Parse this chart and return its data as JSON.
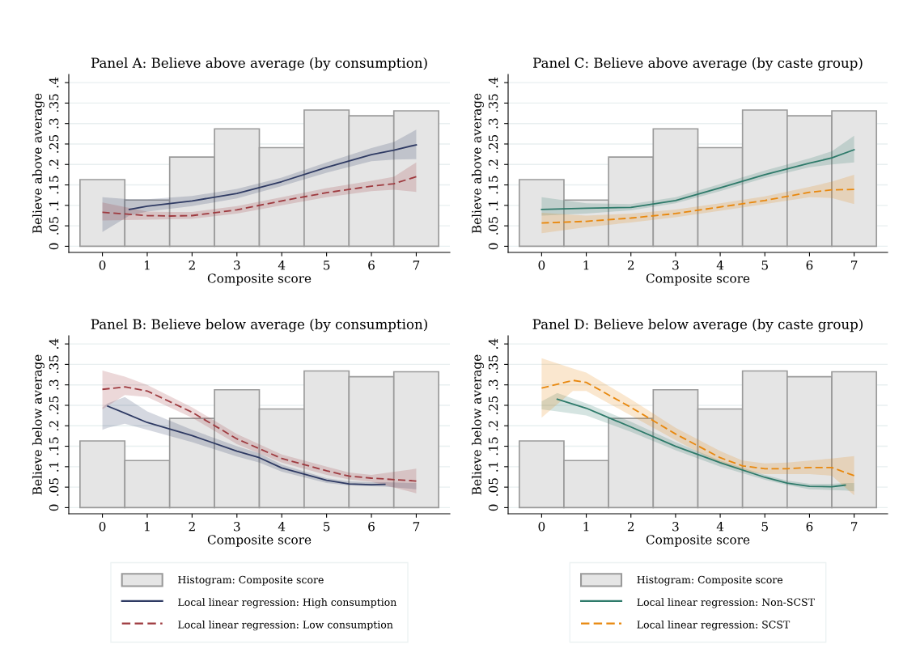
{
  "chart_data": [
    {
      "type": "histogram",
      "title": "Panel A: Believe above average (by consumption)",
      "xlabel": "Composite score",
      "ylabel": "Believe above average",
      "xlim": [
        -0.75,
        7.75
      ],
      "ylim": [
        -0.015,
        0.42
      ],
      "xticks": [
        0,
        1,
        2,
        3,
        4,
        5,
        6,
        7
      ],
      "yticks": [
        0,
        {
          "value": 0.05,
          "label": ".05"
        },
        {
          "value": 0.1,
          "label": ".1"
        },
        {
          "value": 0.15,
          "label": ".15"
        },
        {
          "value": 0.2,
          "label": ".2"
        },
        {
          "value": 0.25,
          "label": ".25"
        },
        {
          "value": 0.3,
          "label": ".3"
        },
        {
          "value": 0.35,
          "label": ".35"
        },
        {
          "value": 0.4,
          "label": ".4"
        }
      ],
      "grid": "y",
      "legend": "bottom",
      "series": [
        {
          "name": "Histogram: Composite score",
          "color": "#e5e5e5",
          "bins": [
            -0.5,
            0.5,
            1.5,
            2.5,
            3.5,
            4.5,
            5.5,
            6.5,
            7.5
          ],
          "values": [
            0.163,
            0.113,
            0.218,
            0.287,
            0.241,
            0.333,
            0.319,
            0.331
          ]
        },
        {
          "type": "line",
          "name": "Local linear regression: High consumption",
          "color": "#2e3a63",
          "line_style": "solid",
          "x": [
            0,
            0.6,
            1,
            2,
            3,
            4,
            5,
            6,
            6.5,
            7
          ],
          "values": [
            null,
            0.09,
            0.098,
            0.111,
            0.129,
            0.158,
            0.193,
            0.224,
            0.235,
            0.248
          ],
          "lower": [
            0.035,
            0.075,
            0.085,
            0.098,
            0.117,
            0.147,
            0.18,
            0.208,
            0.212,
            0.213
          ],
          "upper": [
            0.12,
            0.115,
            0.115,
            0.123,
            0.14,
            0.168,
            0.205,
            0.24,
            0.255,
            0.285
          ]
        },
        {
          "type": "line",
          "name": "Local linear regression: Low consumption",
          "color": "#9e3a3f",
          "line_style": "dashed",
          "x": [
            0,
            1,
            1.5,
            2,
            3,
            4,
            5,
            6,
            6.5,
            7
          ],
          "values": [
            0.083,
            0.075,
            0.074,
            0.075,
            0.089,
            0.111,
            0.131,
            0.147,
            0.153,
            0.17
          ],
          "lower": [
            0.063,
            0.065,
            0.066,
            0.067,
            0.08,
            0.1,
            0.12,
            0.135,
            0.138,
            0.133
          ],
          "upper": [
            0.107,
            0.085,
            0.084,
            0.084,
            0.098,
            0.12,
            0.142,
            0.16,
            0.17,
            0.205
          ]
        }
      ]
    },
    {
      "type": "histogram",
      "title": "Panel C: Believe above average (by caste group)",
      "xlabel": "Composite score",
      "ylabel": "Believe above average",
      "xlim": [
        -0.75,
        7.75
      ],
      "ylim": [
        -0.015,
        0.42
      ],
      "xticks": [
        0,
        1,
        2,
        3,
        4,
        5,
        6,
        7
      ],
      "yticks": [
        0,
        {
          "value": 0.05,
          "label": ".05"
        },
        {
          "value": 0.1,
          "label": ".1"
        },
        {
          "value": 0.15,
          "label": ".15"
        },
        {
          "value": 0.2,
          "label": ".2"
        },
        {
          "value": 0.25,
          "label": ".25"
        },
        {
          "value": 0.3,
          "label": ".3"
        },
        {
          "value": 0.35,
          "label": ".35"
        },
        {
          "value": 0.4,
          "label": ".4"
        }
      ],
      "grid": "y",
      "legend": "bottom",
      "series": [
        {
          "name": "Histogram: Composite score",
          "color": "#e5e5e5",
          "bins": [
            -0.5,
            0.5,
            1.5,
            2.5,
            3.5,
            4.5,
            5.5,
            6.5,
            7.5
          ],
          "values": [
            0.163,
            0.113,
            0.218,
            0.287,
            0.241,
            0.333,
            0.319,
            0.331
          ]
        },
        {
          "type": "line",
          "name": "Local linear regression: Non-SCST",
          "color": "#2e7a6a",
          "line_style": "solid",
          "x": [
            0,
            1,
            2,
            3,
            4,
            5,
            6,
            6.5,
            7
          ],
          "values": [
            0.09,
            0.093,
            0.095,
            0.112,
            0.143,
            0.175,
            0.203,
            0.216,
            0.236
          ],
          "lower": [
            0.075,
            0.08,
            0.088,
            0.105,
            0.135,
            0.167,
            0.193,
            0.2,
            0.205
          ],
          "upper": [
            0.12,
            0.105,
            0.103,
            0.12,
            0.152,
            0.185,
            0.215,
            0.232,
            0.27
          ]
        },
        {
          "type": "line",
          "name": "Local linear regression: SCST",
          "color": "#e8880e",
          "line_style": "dashed",
          "x": [
            0,
            1,
            2,
            3,
            4,
            5,
            6,
            6.5,
            7
          ],
          "values": [
            0.057,
            0.061,
            0.069,
            0.08,
            0.096,
            0.112,
            0.132,
            0.138,
            0.139
          ],
          "lower": [
            0.032,
            0.047,
            0.058,
            0.071,
            0.087,
            0.103,
            0.12,
            0.118,
            0.103
          ],
          "upper": [
            0.082,
            0.075,
            0.08,
            0.09,
            0.105,
            0.122,
            0.145,
            0.158,
            0.175
          ]
        }
      ]
    },
    {
      "type": "histogram",
      "title": "Panel B: Believe below average (by consumption)",
      "xlabel": "Composite score",
      "ylabel": "Believe below average",
      "xlim": [
        -0.75,
        7.75
      ],
      "ylim": [
        -0.015,
        0.42
      ],
      "xticks": [
        0,
        1,
        2,
        3,
        4,
        5,
        6,
        7
      ],
      "yticks": [
        0,
        {
          "value": 0.05,
          "label": ".05"
        },
        {
          "value": 0.1,
          "label": ".1"
        },
        {
          "value": 0.15,
          "label": ".15"
        },
        {
          "value": 0.2,
          "label": ".2"
        },
        {
          "value": 0.25,
          "label": ".25"
        },
        {
          "value": 0.3,
          "label": ".3"
        },
        {
          "value": 0.35,
          "label": ".35"
        },
        {
          "value": 0.4,
          "label": ".4"
        }
      ],
      "grid": "y",
      "series": [
        {
          "color": "#e5e5e5",
          "bins": [
            -0.5,
            0.5,
            1.5,
            2.5,
            3.5,
            4.5,
            5.5,
            6.5,
            7.5
          ],
          "values": [
            0.163,
            0.115,
            0.218,
            0.288,
            0.241,
            0.334,
            0.32,
            0.332
          ]
        },
        {
          "type": "line",
          "color": "#2e3a63",
          "line_style": "solid",
          "x": [
            0,
            0.12,
            0.5,
            1,
            2,
            3,
            3.5,
            4,
            5,
            5.5,
            6,
            6.3,
            7
          ],
          "values": [
            null,
            0.248,
            0.231,
            0.208,
            0.176,
            0.138,
            0.122,
            0.097,
            0.067,
            0.058,
            0.056,
            0.057,
            null
          ],
          "lower": [
            0.19,
            0.195,
            0.205,
            0.19,
            0.16,
            0.125,
            0.11,
            0.088,
            0.06,
            0.054,
            0.052,
            0.051,
            0.045
          ],
          "upper": [
            0.245,
            0.255,
            0.27,
            0.235,
            0.19,
            0.15,
            0.133,
            0.105,
            0.072,
            0.064,
            0.062,
            0.062,
            0.06
          ]
        },
        {
          "type": "line",
          "color": "#9e3a3f",
          "line_style": "dashed",
          "x": [
            0,
            0.5,
            1,
            2,
            3,
            4,
            5,
            5.5,
            6,
            7
          ],
          "values": [
            0.289,
            0.295,
            0.285,
            0.233,
            0.168,
            0.12,
            0.09,
            0.077,
            0.072,
            0.065
          ],
          "lower": [
            0.24,
            0.275,
            0.27,
            0.22,
            0.155,
            0.11,
            0.08,
            0.069,
            0.063,
            0.035
          ],
          "upper": [
            0.335,
            0.32,
            0.3,
            0.245,
            0.18,
            0.13,
            0.1,
            0.086,
            0.08,
            0.095
          ]
        }
      ]
    },
    {
      "type": "histogram",
      "title": "Panel D: Believe below average (by caste group)",
      "xlabel": "Composite score",
      "ylabel": "Believe below average",
      "xlim": [
        -0.75,
        7.75
      ],
      "ylim": [
        -0.015,
        0.42
      ],
      "xticks": [
        0,
        1,
        2,
        3,
        4,
        5,
        6,
        7
      ],
      "yticks": [
        0,
        {
          "value": 0.05,
          "label": ".05"
        },
        {
          "value": 0.1,
          "label": ".1"
        },
        {
          "value": 0.15,
          "label": ".15"
        },
        {
          "value": 0.2,
          "label": ".2"
        },
        {
          "value": 0.25,
          "label": ".25"
        },
        {
          "value": 0.3,
          "label": ".3"
        },
        {
          "value": 0.35,
          "label": ".35"
        },
        {
          "value": 0.4,
          "label": ".4"
        }
      ],
      "grid": "y",
      "series": [
        {
          "color": "#e5e5e5",
          "bins": [
            -0.5,
            0.5,
            1.5,
            2.5,
            3.5,
            4.5,
            5.5,
            6.5,
            7.5
          ],
          "values": [
            0.163,
            0.115,
            0.218,
            0.288,
            0.241,
            0.334,
            0.32,
            0.332
          ]
        },
        {
          "type": "line",
          "color": "#2e7a6a",
          "line_style": "solid",
          "x": [
            0,
            0.35,
            1,
            2,
            3,
            4,
            5,
            5.5,
            6,
            6.5,
            6.8,
            7
          ],
          "values": [
            null,
            0.265,
            0.243,
            0.197,
            0.15,
            0.11,
            0.074,
            0.06,
            0.052,
            0.051,
            0.055,
            null
          ],
          "lower": [
            0.24,
            0.235,
            0.225,
            0.185,
            0.14,
            0.1,
            0.068,
            0.055,
            0.045,
            0.043,
            0.042,
            0.04
          ],
          "upper": [
            0.26,
            0.28,
            0.255,
            0.21,
            0.16,
            0.115,
            0.08,
            0.066,
            0.058,
            0.058,
            0.06,
            0.06
          ]
        },
        {
          "type": "line",
          "color": "#e8880e",
          "line_style": "dashed",
          "x": [
            0,
            0.7,
            1,
            2,
            3,
            4,
            4.5,
            5,
            5.5,
            6,
            6.5,
            7
          ],
          "values": [
            0.292,
            0.311,
            0.306,
            0.245,
            0.18,
            0.122,
            0.102,
            0.095,
            0.095,
            0.098,
            0.098,
            0.078
          ],
          "lower": [
            0.22,
            0.285,
            0.285,
            0.225,
            0.165,
            0.108,
            0.09,
            0.082,
            0.082,
            0.082,
            0.078,
            0.03
          ],
          "upper": [
            0.365,
            0.34,
            0.33,
            0.265,
            0.195,
            0.138,
            0.115,
            0.108,
            0.11,
            0.115,
            0.12,
            0.126
          ]
        }
      ]
    }
  ]
}
